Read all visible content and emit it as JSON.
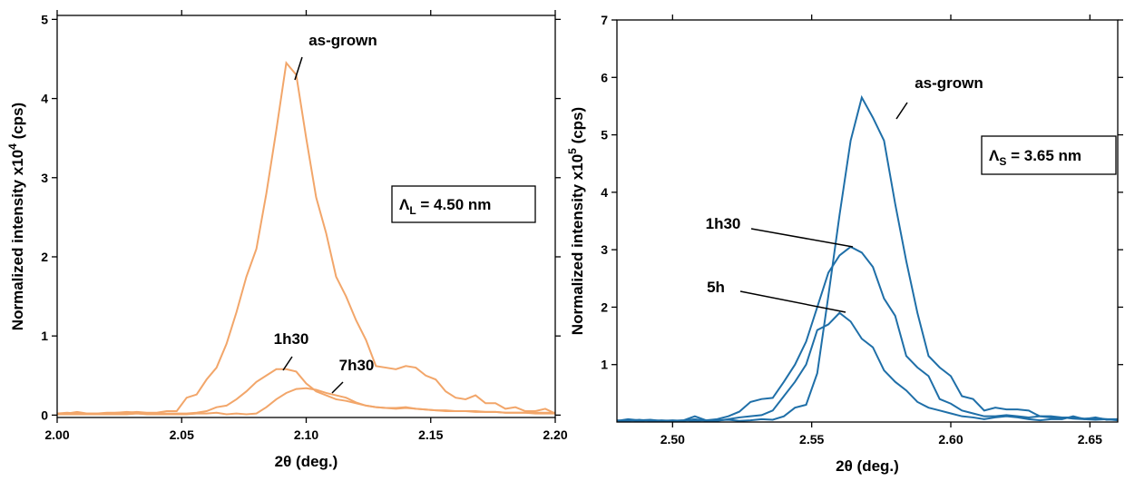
{
  "chart_data": [
    {
      "type": "line",
      "x_label": "2θ (deg.)",
      "y_label": {
        "text": "Normalized intensity x10",
        "sup": "4",
        "after": " (cps)"
      },
      "box_label": {
        "main": "Λ",
        "sub": "L",
        "after": " = 4.50 nm"
      },
      "xlim": [
        2.0,
        2.2
      ],
      "ylim": [
        -0.03,
        5.05
      ],
      "xticks": [
        {
          "value": 2.0,
          "label": "2.00"
        },
        {
          "value": 2.05,
          "label": "2.05"
        },
        {
          "value": 2.1,
          "label": "2.10"
        },
        {
          "value": 2.15,
          "label": "2.15"
        },
        {
          "value": 2.2,
          "label": "2.20"
        }
      ],
      "yticks": [
        0,
        1,
        2,
        3,
        4,
        5
      ],
      "x": [
        2.0,
        2.004,
        2.008,
        2.012,
        2.016,
        2.02,
        2.024,
        2.028,
        2.032,
        2.036,
        2.04,
        2.044,
        2.048,
        2.052,
        2.056,
        2.06,
        2.064,
        2.068,
        2.072,
        2.076,
        2.08,
        2.084,
        2.088,
        2.092,
        2.096,
        2.1,
        2.104,
        2.108,
        2.112,
        2.116,
        2.12,
        2.124,
        2.128,
        2.132,
        2.136,
        2.14,
        2.144,
        2.148,
        2.152,
        2.156,
        2.16,
        2.164,
        2.168,
        2.172,
        2.176,
        2.18,
        2.184,
        2.188,
        2.192,
        2.196,
        2.2
      ],
      "series": [
        {
          "name": "as-grown",
          "color": "#f2a66a",
          "values": [
            0.02,
            0.02,
            0.04,
            0.02,
            0.02,
            0.02,
            0.03,
            0.03,
            0.04,
            0.03,
            0.03,
            0.05,
            0.05,
            0.22,
            0.26,
            0.45,
            0.6,
            0.9,
            1.3,
            1.75,
            2.1,
            2.8,
            3.6,
            4.45,
            4.3,
            3.5,
            2.75,
            2.3,
            1.75,
            1.5,
            1.2,
            0.95,
            0.62,
            0.6,
            0.58,
            0.62,
            0.6,
            0.5,
            0.45,
            0.3,
            0.22,
            0.2,
            0.25,
            0.15,
            0.15,
            0.08,
            0.1,
            0.05,
            0.05,
            0.08,
            0.02
          ]
        },
        {
          "name": "1h30",
          "color": "#f2a66a",
          "values": [
            0.02,
            0.03,
            0.02,
            0.02,
            0.02,
            0.03,
            0.03,
            0.04,
            0.03,
            0.02,
            0.02,
            0.02,
            0.02,
            0.02,
            0.03,
            0.05,
            0.1,
            0.12,
            0.2,
            0.3,
            0.42,
            0.5,
            0.58,
            0.58,
            0.55,
            0.4,
            0.3,
            0.25,
            0.2,
            0.18,
            0.15,
            0.12,
            0.1,
            0.09,
            0.09,
            0.1,
            0.08,
            0.07,
            0.06,
            0.05,
            0.05,
            0.05,
            0.04,
            0.04,
            0.04,
            0.03,
            0.03,
            0.03,
            0.03,
            0.03,
            0.03
          ]
        },
        {
          "name": "7h30",
          "color": "#f2a66a",
          "values": [
            0.01,
            0.01,
            0.01,
            0.01,
            0.01,
            0.01,
            0.01,
            0.01,
            0.02,
            0.01,
            0.01,
            0.01,
            0.01,
            0.01,
            0.02,
            0.02,
            0.03,
            0.01,
            0.02,
            0.01,
            0.02,
            0.1,
            0.2,
            0.28,
            0.33,
            0.34,
            0.32,
            0.28,
            0.25,
            0.22,
            0.16,
            0.12,
            0.1,
            0.09,
            0.08,
            0.09,
            0.08,
            0.07,
            0.06,
            0.06,
            0.05,
            0.05,
            0.05,
            0.04,
            0.04,
            0.03,
            0.03,
            0.03,
            0.02,
            0.02,
            0.02
          ]
        }
      ]
    },
    {
      "type": "line",
      "x_label": "2θ (deg.)",
      "y_label": {
        "text": "Normalized intensity x10",
        "sup": "5",
        "after": " (cps)"
      },
      "box_label": {
        "main": "Λ",
        "sub": "S",
        "after": " = 3.65 nm"
      },
      "xlim": [
        2.48,
        2.66
      ],
      "ylim": [
        0,
        7
      ],
      "xticks": [
        {
          "value": 2.5,
          "label": "2.50"
        },
        {
          "value": 2.55,
          "label": "2.55"
        },
        {
          "value": 2.6,
          "label": "2.60"
        },
        {
          "value": 2.65,
          "label": "2.65"
        }
      ],
      "yticks": [
        1,
        2,
        3,
        4,
        5,
        6,
        7
      ],
      "x": [
        2.48,
        2.484,
        2.488,
        2.492,
        2.496,
        2.5,
        2.504,
        2.508,
        2.512,
        2.516,
        2.52,
        2.524,
        2.528,
        2.532,
        2.536,
        2.54,
        2.544,
        2.548,
        2.552,
        2.556,
        2.56,
        2.564,
        2.568,
        2.572,
        2.576,
        2.58,
        2.584,
        2.588,
        2.592,
        2.596,
        2.6,
        2.604,
        2.608,
        2.612,
        2.616,
        2.62,
        2.624,
        2.628,
        2.632,
        2.636,
        2.64,
        2.644,
        2.648,
        2.652,
        2.656,
        2.66
      ],
      "series": [
        {
          "name": "as-grown",
          "color": "#1f6fa8",
          "values": [
            0.02,
            0.05,
            0.03,
            0.04,
            0.02,
            0.03,
            0.02,
            0.05,
            0.02,
            0.03,
            0.04,
            0.02,
            0.03,
            0.05,
            0.04,
            0.1,
            0.25,
            0.3,
            0.85,
            2.2,
            3.6,
            4.9,
            5.65,
            5.3,
            4.9,
            3.8,
            2.8,
            1.9,
            1.15,
            0.95,
            0.8,
            0.45,
            0.4,
            0.2,
            0.25,
            0.22,
            0.22,
            0.2,
            0.1,
            0.08,
            0.08,
            0.06,
            0.05,
            0.04,
            0.05,
            0.03
          ]
        },
        {
          "name": "1h30",
          "color": "#1f6fa8",
          "values": [
            0.03,
            0.02,
            0.04,
            0.02,
            0.03,
            0.02,
            0.03,
            0.1,
            0.03,
            0.05,
            0.1,
            0.18,
            0.35,
            0.4,
            0.42,
            0.7,
            1.0,
            1.4,
            2.0,
            2.6,
            2.9,
            3.05,
            2.95,
            2.7,
            2.15,
            1.85,
            1.15,
            0.95,
            0.8,
            0.4,
            0.32,
            0.2,
            0.15,
            0.1,
            0.1,
            0.12,
            0.1,
            0.08,
            0.1,
            0.1,
            0.08,
            0.08,
            0.06,
            0.07,
            0.05,
            0.05
          ]
        },
        {
          "name": "5h",
          "color": "#1f6fa8",
          "values": [
            0.02,
            0.03,
            0.02,
            0.03,
            0.02,
            0.02,
            0.03,
            0.02,
            0.03,
            0.02,
            0.05,
            0.08,
            0.1,
            0.12,
            0.2,
            0.45,
            0.7,
            1.0,
            1.6,
            1.7,
            1.9,
            1.75,
            1.45,
            1.3,
            0.9,
            0.7,
            0.55,
            0.35,
            0.25,
            0.2,
            0.15,
            0.1,
            0.08,
            0.05,
            0.08,
            0.1,
            0.08,
            0.05,
            0.03,
            0.05,
            0.05,
            0.1,
            0.05,
            0.08,
            0.04,
            0.05
          ]
        }
      ]
    }
  ]
}
